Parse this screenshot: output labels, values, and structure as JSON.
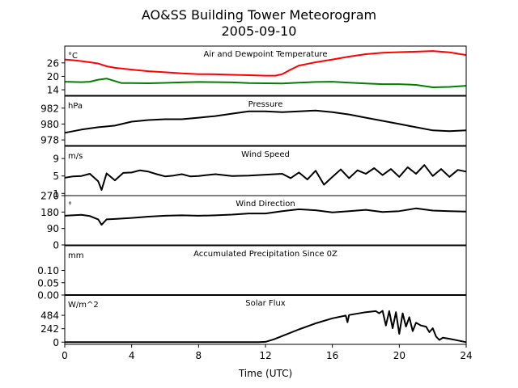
{
  "title_line1": "AO&SS Building Tower Meteorogram",
  "title_line2": "2005-09-10",
  "chart_data": {
    "type": "line",
    "xlabel": "Time (UTC)",
    "xlim": [
      0,
      24
    ],
    "xticks": [
      0,
      4,
      8,
      12,
      16,
      20,
      24
    ],
    "panels": [
      {
        "key": "temp",
        "title": "Air and Dewpoint Temperature",
        "unit": "°C",
        "ylim": [
          11.5,
          33.5
        ],
        "yticks": [
          14,
          20,
          26
        ],
        "series": [
          {
            "color": "#ff0000",
            "points": [
              [
                0,
                27.5
              ],
              [
                0.5,
                27.2
              ],
              [
                1,
                26.8
              ],
              [
                1.5,
                26.3
              ],
              [
                2,
                25.7
              ],
              [
                2.5,
                24.5
              ],
              [
                3,
                23.8
              ],
              [
                4,
                23
              ],
              [
                5,
                22.3
              ],
              [
                6,
                21.8
              ],
              [
                7,
                21.3
              ],
              [
                8,
                21
              ],
              [
                9,
                20.9
              ],
              [
                10,
                20.7
              ],
              [
                11,
                20.5
              ],
              [
                12,
                20.3
              ],
              [
                12.6,
                20.3
              ],
              [
                13,
                21
              ],
              [
                13.5,
                23
              ],
              [
                14,
                24.8
              ],
              [
                15,
                26.3
              ],
              [
                16,
                27.5
              ],
              [
                17,
                28.8
              ],
              [
                18,
                29.9
              ],
              [
                19,
                30.5
              ],
              [
                20,
                30.8
              ],
              [
                21,
                31
              ],
              [
                22,
                31.3
              ],
              [
                23,
                30.7
              ],
              [
                24,
                29.5
              ]
            ]
          },
          {
            "color": "#008000",
            "points": [
              [
                0,
                17.6
              ],
              [
                1,
                17.4
              ],
              [
                1.5,
                17.6
              ],
              [
                2,
                18.5
              ],
              [
                2.5,
                19
              ],
              [
                3,
                17.9
              ],
              [
                3.4,
                17
              ],
              [
                4,
                17
              ],
              [
                5,
                16.9
              ],
              [
                6,
                17.1
              ],
              [
                7,
                17.3
              ],
              [
                8,
                17.5
              ],
              [
                9,
                17.4
              ],
              [
                10,
                17.3
              ],
              [
                11,
                17
              ],
              [
                12,
                16.9
              ],
              [
                13,
                16.8
              ],
              [
                14,
                17.2
              ],
              [
                15,
                17.5
              ],
              [
                16,
                17.6
              ],
              [
                17,
                17.2
              ],
              [
                18,
                16.8
              ],
              [
                19,
                16.5
              ],
              [
                20,
                16.5
              ],
              [
                21,
                16.2
              ],
              [
                22,
                15.1
              ],
              [
                23,
                15.3
              ],
              [
                24,
                15.8
              ]
            ]
          }
        ]
      },
      {
        "key": "pres",
        "title": "Pressure",
        "unit": "hPa",
        "ylim": [
          977.3,
          983.5
        ],
        "yticks": [
          978,
          980,
          982
        ],
        "series": [
          {
            "color": "#000000",
            "points": [
              [
                0,
                978.9
              ],
              [
                1,
                979.3
              ],
              [
                2,
                979.6
              ],
              [
                3,
                979.8
              ],
              [
                4,
                980.3
              ],
              [
                5,
                980.5
              ],
              [
                6,
                980.6
              ],
              [
                7,
                980.6
              ],
              [
                8,
                980.8
              ],
              [
                9,
                981
              ],
              [
                10,
                981.3
              ],
              [
                11,
                981.6
              ],
              [
                12,
                981.6
              ],
              [
                13,
                981.5
              ],
              [
                14,
                981.6
              ],
              [
                15,
                981.7
              ],
              [
                16,
                981.5
              ],
              [
                17,
                981.2
              ],
              [
                18,
                980.8
              ],
              [
                19,
                980.4
              ],
              [
                20,
                980
              ],
              [
                21,
                979.6
              ],
              [
                22,
                979.2
              ],
              [
                23,
                979.1
              ],
              [
                24,
                979.2
              ]
            ]
          }
        ]
      },
      {
        "key": "wspd",
        "title": "Wind Speed",
        "unit": "m/s",
        "ylim": [
          0.5,
          11.8
        ],
        "yticks": [
          1,
          5,
          9
        ],
        "series": [
          {
            "color": "#000000",
            "points": [
              [
                0,
                4.6
              ],
              [
                0.5,
                4.9
              ],
              [
                1,
                5
              ],
              [
                1.5,
                5.5
              ],
              [
                2,
                3.8
              ],
              [
                2.2,
                1.8
              ],
              [
                2.5,
                5.6
              ],
              [
                3,
                4
              ],
              [
                3.5,
                5.7
              ],
              [
                4,
                5.8
              ],
              [
                4.5,
                6.3
              ],
              [
                5,
                6
              ],
              [
                5.5,
                5.4
              ],
              [
                6,
                4.9
              ],
              [
                6.5,
                5.1
              ],
              [
                7,
                5.4
              ],
              [
                7.5,
                4.9
              ],
              [
                8,
                5
              ],
              [
                9,
                5.4
              ],
              [
                10,
                5
              ],
              [
                11,
                5.1
              ],
              [
                12,
                5.3
              ],
              [
                13,
                5.5
              ],
              [
                13.5,
                4.5
              ],
              [
                14,
                5.8
              ],
              [
                14.5,
                4.2
              ],
              [
                15,
                6.2
              ],
              [
                15.5,
                3
              ],
              [
                16,
                4.8
              ],
              [
                16.5,
                6.5
              ],
              [
                17,
                4.5
              ],
              [
                17.5,
                6.3
              ],
              [
                18,
                5.5
              ],
              [
                18.5,
                6.8
              ],
              [
                19,
                5.2
              ],
              [
                19.5,
                6.6
              ],
              [
                20,
                4.8
              ],
              [
                20.5,
                7
              ],
              [
                21,
                5.5
              ],
              [
                21.5,
                7.5
              ],
              [
                22,
                5
              ],
              [
                22.5,
                6.6
              ],
              [
                23,
                4.8
              ],
              [
                23.5,
                6.4
              ],
              [
                24,
                6
              ]
            ]
          }
        ]
      },
      {
        "key": "wdir",
        "title": "Wind Direction",
        "unit": "°",
        "ylim": [
          0,
          270
        ],
        "yticks": [
          0,
          90,
          180,
          270
        ],
        "series": [
          {
            "color": "#000000",
            "points": [
              [
                0,
                160
              ],
              [
                1,
                165
              ],
              [
                1.5,
                158
              ],
              [
                2,
                140
              ],
              [
                2.2,
                110
              ],
              [
                2.5,
                140
              ],
              [
                3,
                142
              ],
              [
                4,
                148
              ],
              [
                5,
                155
              ],
              [
                6,
                160
              ],
              [
                7,
                162
              ],
              [
                8,
                160
              ],
              [
                9,
                162
              ],
              [
                10,
                166
              ],
              [
                11,
                172
              ],
              [
                12,
                172
              ],
              [
                13,
                185
              ],
              [
                14,
                195
              ],
              [
                15,
                190
              ],
              [
                16,
                178
              ],
              [
                17,
                185
              ],
              [
                18,
                192
              ],
              [
                19,
                180
              ],
              [
                20,
                185
              ],
              [
                21,
                200
              ],
              [
                22,
                188
              ],
              [
                23,
                185
              ],
              [
                24,
                183
              ]
            ]
          }
        ]
      },
      {
        "key": "precip",
        "title": "Accumulated Precipitation Since 0Z",
        "unit": "mm",
        "ylim": [
          0,
          0.2
        ],
        "yticks": [
          0,
          0.05,
          0.1
        ],
        "tick_labels": [
          "0.00",
          "0.05",
          "0.10"
        ],
        "series": [
          {
            "color": "#000000",
            "points": [
              [
                0,
                0
              ],
              [
                24,
                0
              ]
            ]
          }
        ]
      },
      {
        "key": "solar",
        "title": "Solar Flux",
        "unit": "W/m^2",
        "ylim": [
          -40,
          850
        ],
        "yticks": [
          0,
          242,
          484
        ],
        "series": [
          {
            "color": "#000000",
            "points": [
              [
                0,
                0
              ],
              [
                11.6,
                0
              ],
              [
                12,
                5
              ],
              [
                12.5,
                50
              ],
              [
                13,
                110
              ],
              [
                14,
                230
              ],
              [
                15,
                340
              ],
              [
                16,
                430
              ],
              [
                16.8,
                480
              ],
              [
                16.9,
                360
              ],
              [
                17,
                490
              ],
              [
                18,
                540
              ],
              [
                18.6,
                560
              ],
              [
                18.8,
                520
              ],
              [
                19,
                565
              ],
              [
                19.2,
                300
              ],
              [
                19.4,
                560
              ],
              [
                19.6,
                250
              ],
              [
                19.8,
                540
              ],
              [
                20,
                150
              ],
              [
                20.2,
                520
              ],
              [
                20.4,
                280
              ],
              [
                20.6,
                450
              ],
              [
                20.8,
                200
              ],
              [
                21,
                350
              ],
              [
                21.3,
                300
              ],
              [
                21.6,
                280
              ],
              [
                21.8,
                180
              ],
              [
                22,
                250
              ],
              [
                22.2,
                100
              ],
              [
                22.4,
                40
              ],
              [
                22.6,
                80
              ],
              [
                23,
                60
              ],
              [
                23.5,
                30
              ],
              [
                24,
                0
              ]
            ]
          }
        ]
      }
    ]
  }
}
